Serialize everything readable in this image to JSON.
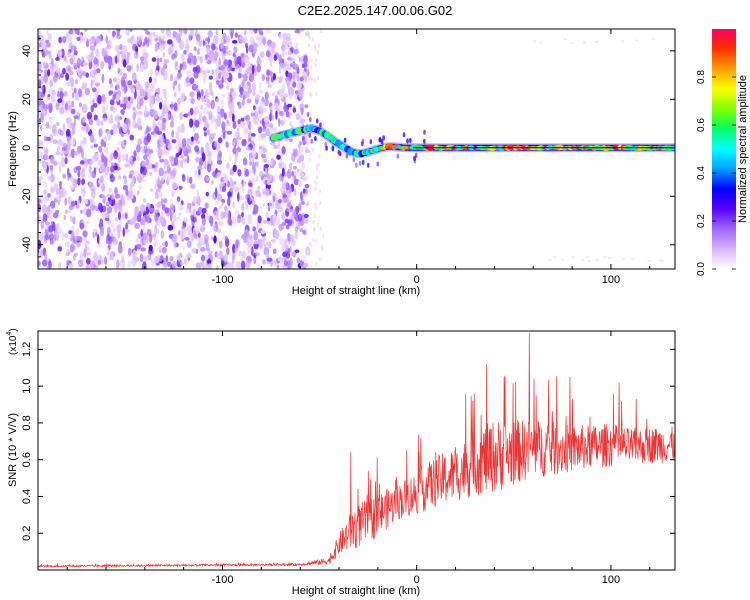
{
  "figure": {
    "title": "C2E2.2025.147.00.06.G02"
  },
  "chart_data": [
    {
      "type": "heatmap",
      "name": "spectrogram",
      "xlabel": "Height of straight line (km)",
      "ylabel": "Frequency (Hz)",
      "xlim": [
        -195,
        133
      ],
      "ylim": [
        -50,
        49
      ],
      "xticks": [
        -100,
        0,
        100
      ],
      "xtick_labels": [
        "-100",
        "0",
        "100"
      ],
      "yticks": [
        -40,
        -20,
        0,
        20,
        40
      ],
      "ytick_labels": [
        "-40",
        "-20",
        "0",
        "20",
        "40"
      ],
      "colorbar": {
        "label": "Normalized spectral amplitude",
        "range": [
          0,
          1
        ],
        "ticks": [
          0.0,
          0.2,
          0.4,
          0.6,
          0.8
        ],
        "tick_labels": [
          "0.0",
          "0.2",
          "0.4",
          "0.6",
          "0.8"
        ],
        "colors": [
          "#ffffff",
          "#d9b3ff",
          "#a066ff",
          "#5a00ff",
          "#0000ff",
          "#00a0ff",
          "#00ffff",
          "#00ff60",
          "#80ff00",
          "#ffff00",
          "#ffa000",
          "#ff3000",
          "#ff0060"
        ]
      },
      "noise_region_x": [
        -195,
        -56
      ],
      "ridge": {
        "x": [
          -74,
          -68,
          -62,
          -58,
          -54,
          -50,
          -46,
          -42,
          -38,
          -34,
          -30,
          -26,
          -22,
          -18,
          -14,
          -10,
          -6,
          -2,
          2,
          6,
          10,
          20,
          40,
          60,
          80,
          100,
          120,
          133
        ],
        "freq": [
          4,
          5.5,
          6.5,
          7.5,
          8,
          7,
          5,
          2.5,
          0.5,
          -1.5,
          -2.5,
          -2,
          -1,
          0,
          0.5,
          0.3,
          0,
          0,
          0,
          0,
          0,
          0,
          0,
          0,
          0,
          0,
          0,
          0
        ]
      }
    },
    {
      "type": "line",
      "name": "snr",
      "xlabel": "Height of straight line (km)",
      "ylabel": "SNR (10 * V/V)",
      "y_multiplier": "(x10",
      "y_multiplier_exp": "4",
      "xlim": [
        -195,
        133
      ],
      "ylim": [
        0,
        1.3
      ],
      "xticks": [
        -100,
        0,
        100
      ],
      "xtick_labels": [
        "-100",
        "0",
        "100"
      ],
      "yticks": [
        0.2,
        0.4,
        0.6,
        0.8,
        1.0,
        1.2
      ],
      "ytick_labels": [
        "0.2",
        "0.4",
        "0.6",
        "0.8",
        "1.0",
        "1.2"
      ],
      "color": "#ee3333",
      "envelope": {
        "x": [
          -195,
          -60,
          -45,
          -40,
          -35,
          -30,
          -25,
          -20,
          -10,
          0,
          10,
          20,
          30,
          40,
          50,
          60,
          70,
          80,
          90,
          100,
          110,
          120,
          133
        ],
        "mean": [
          0.02,
          0.03,
          0.05,
          0.14,
          0.2,
          0.24,
          0.27,
          0.3,
          0.37,
          0.42,
          0.48,
          0.52,
          0.58,
          0.62,
          0.64,
          0.66,
          0.66,
          0.66,
          0.67,
          0.68,
          0.67,
          0.68,
          0.68
        ],
        "spread": [
          0.005,
          0.006,
          0.02,
          0.06,
          0.1,
          0.12,
          0.12,
          0.12,
          0.1,
          0.12,
          0.14,
          0.15,
          0.18,
          0.2,
          0.18,
          0.16,
          0.15,
          0.13,
          0.12,
          0.12,
          0.1,
          0.1,
          0.1
        ]
      },
      "spikes": [
        {
          "x": -34,
          "y": 0.64
        },
        {
          "x": -25,
          "y": 0.54
        },
        {
          "x": 36,
          "y": 1.12
        },
        {
          "x": 45,
          "y": 1.05
        },
        {
          "x": 58,
          "y": 1.29
        },
        {
          "x": 29,
          "y": 0.92
        }
      ]
    }
  ]
}
